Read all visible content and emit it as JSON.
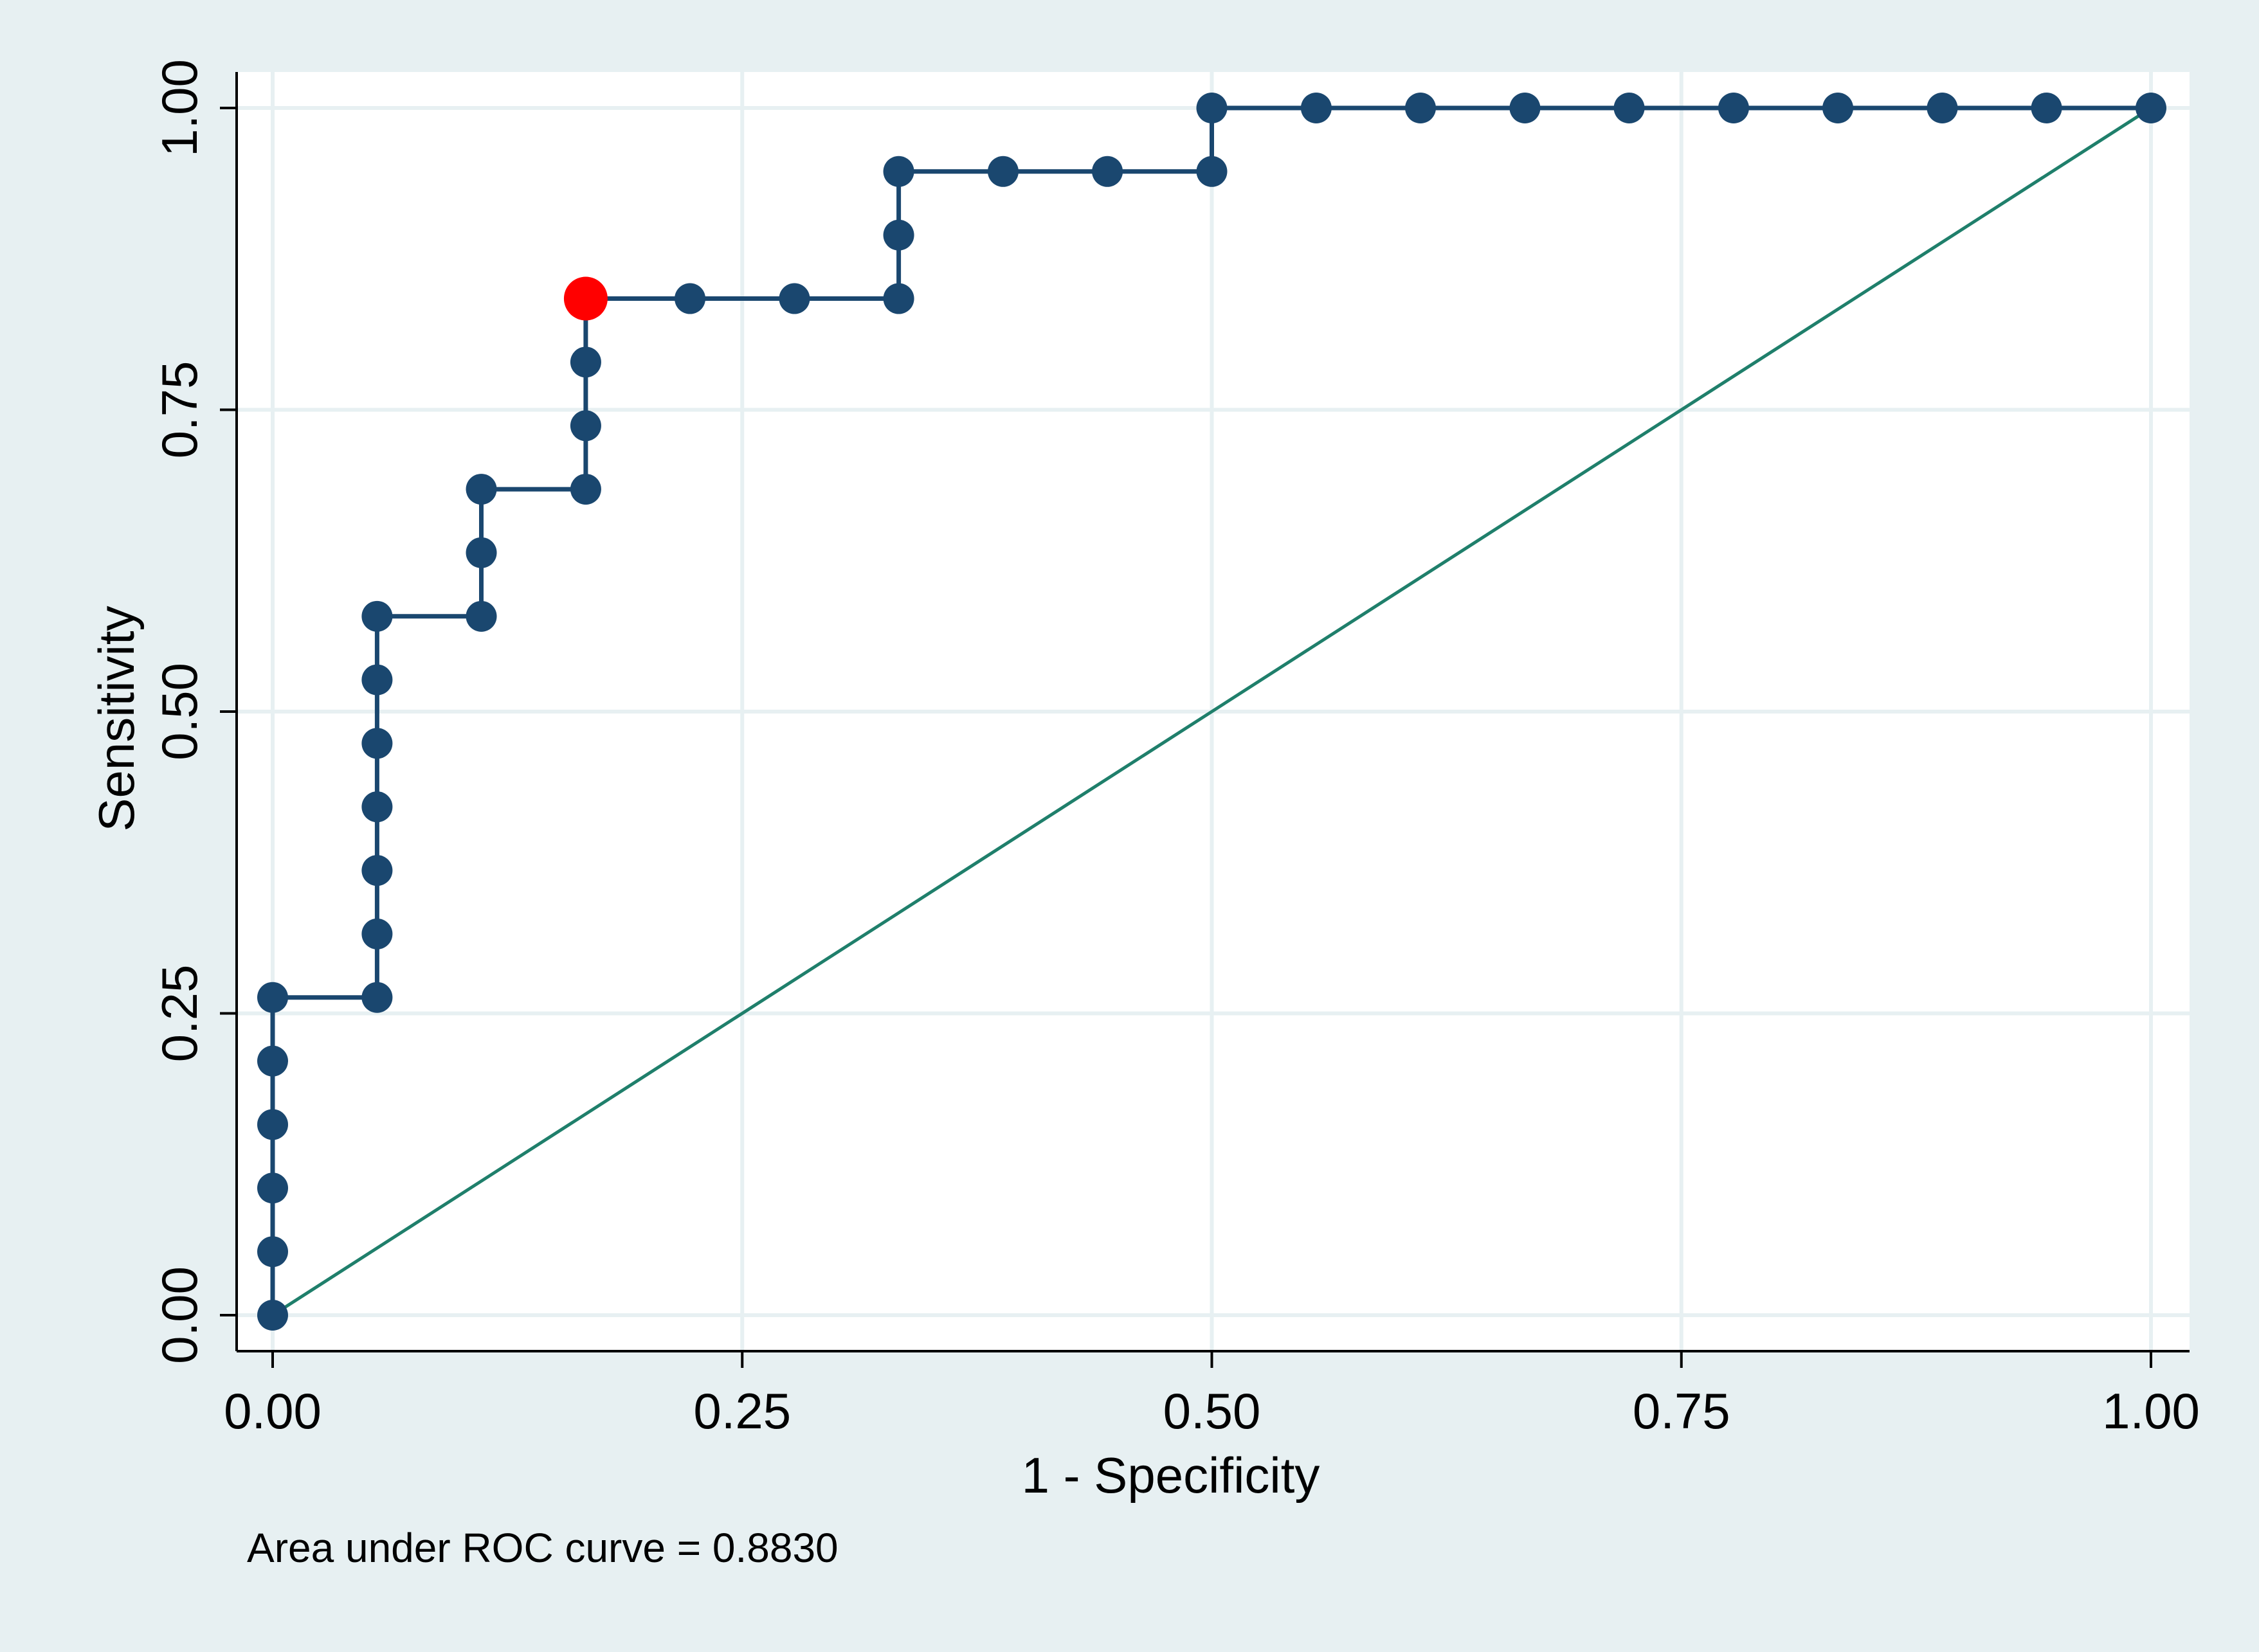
{
  "chart_data": {
    "type": "line",
    "subtype": "roc",
    "title": "",
    "xlabel": "1 - Specificity",
    "ylabel": "Sensitivity",
    "xlim": [
      0,
      1
    ],
    "ylim": [
      0,
      1
    ],
    "xticks": [
      0,
      0.25,
      0.5,
      0.75,
      1
    ],
    "yticks": [
      0,
      0.25,
      0.5,
      0.75,
      1
    ],
    "xtick_labels": [
      "0.00",
      "0.25",
      "0.50",
      "0.75",
      "1.00"
    ],
    "ytick_labels": [
      "0.00",
      "0.25",
      "0.50",
      "0.75",
      "1.00"
    ],
    "grid": true,
    "legend": "none",
    "note": "Area under ROC curve = 0.8830",
    "auc": 0.883,
    "series": [
      {
        "role": "roc",
        "color": "#1a476f",
        "marker": "circle",
        "step": true,
        "x": [
          0,
          0,
          0,
          0,
          0,
          0,
          0.0556,
          0.0556,
          0.0556,
          0.0556,
          0.0556,
          0.0556,
          0.0556,
          0.1111,
          0.1111,
          0.1111,
          0.1667,
          0.1667,
          0.1667,
          0.1667,
          0.2222,
          0.2778,
          0.3333,
          0.3333,
          0.3333,
          0.3889,
          0.4444,
          0.5,
          0.5,
          0.5556,
          0.6111,
          0.6667,
          0.7222,
          0.7778,
          0.8333,
          0.8889,
          0.9444,
          1
        ],
        "y": [
          0,
          0.0526,
          0.1053,
          0.1579,
          0.2105,
          0.2632,
          0.2632,
          0.3158,
          0.3684,
          0.4211,
          0.4737,
          0.5263,
          0.5789,
          0.5789,
          0.6316,
          0.6842,
          0.6842,
          0.7368,
          0.7895,
          0.8421,
          0.8421,
          0.8421,
          0.8421,
          0.8947,
          0.9474,
          0.9474,
          0.9474,
          0.9474,
          1,
          1,
          1,
          1,
          1,
          1,
          1,
          1,
          1,
          1
        ]
      },
      {
        "role": "reference",
        "color": "#1f7f6b",
        "marker": "none",
        "x": [
          0,
          1
        ],
        "y": [
          0,
          1
        ]
      }
    ],
    "highlight": {
      "x": 0.1667,
      "y": 0.8421,
      "color": "#ff0000"
    },
    "colors": {
      "outer_background": "#e7f0f2",
      "plot_background": "#ffffff",
      "grid": "#e7f0f2",
      "axis": "#000000"
    }
  }
}
